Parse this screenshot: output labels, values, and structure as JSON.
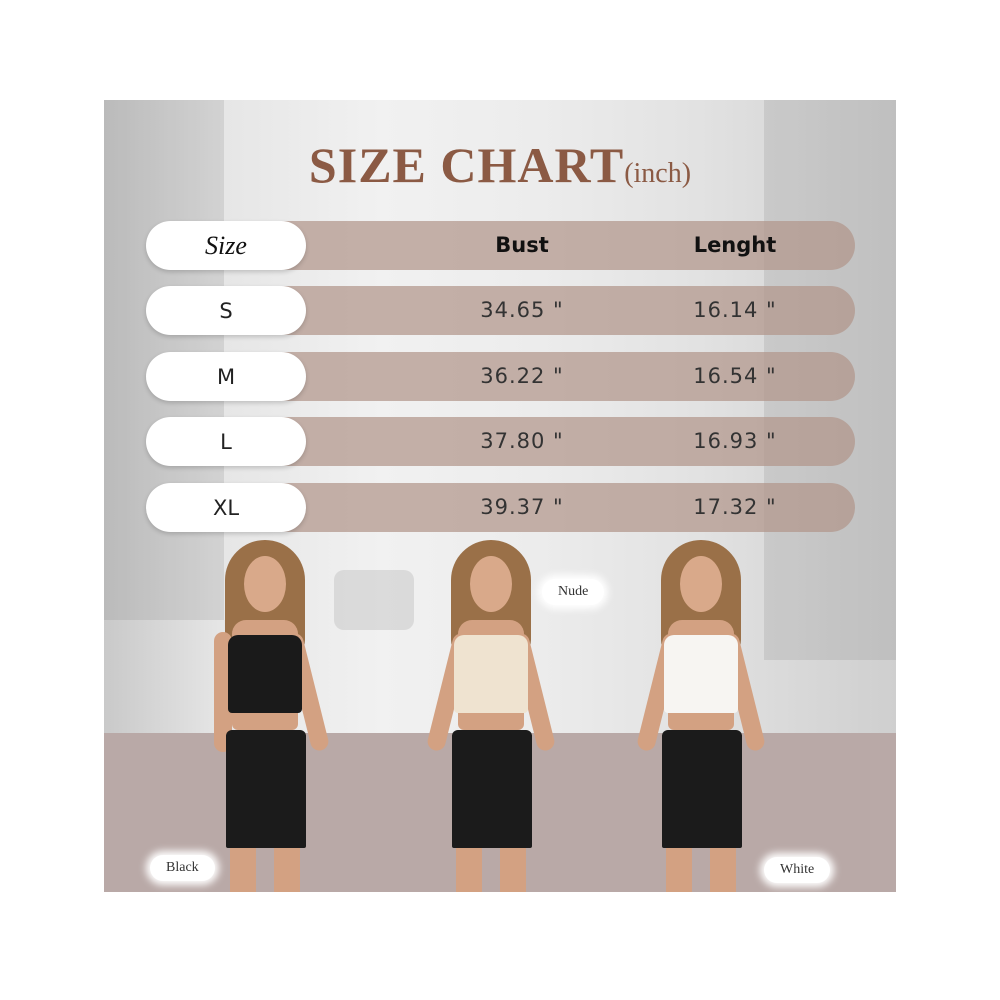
{
  "title": {
    "main": "SIZE CHART",
    "unit": "(inch)"
  },
  "table": {
    "headers": [
      "Size",
      "Bust",
      "Lenght"
    ],
    "rows": [
      {
        "size": "S",
        "bust": "34.65 \"",
        "length": "16.14 \""
      },
      {
        "size": "M",
        "bust": "36.22 \"",
        "length": "16.54 \""
      },
      {
        "size": "L",
        "bust": "37.80 \"",
        "length": "16.93 \""
      },
      {
        "size": "XL",
        "bust": "39.37 \"",
        "length": "17.32 \""
      }
    ]
  },
  "colors": {
    "labels": [
      "Black",
      "Nude",
      "White"
    ],
    "title_color": "#8b5a44",
    "bar_color": "#b2968a",
    "band_color": "#b9a9a7"
  }
}
